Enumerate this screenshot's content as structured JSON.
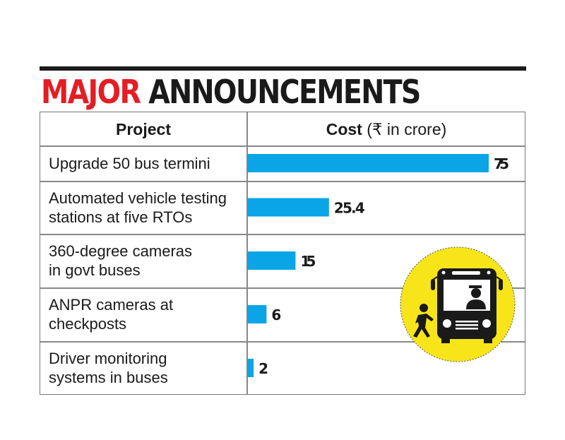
{
  "title": {
    "part1": "MAJOR",
    "part2": "ANNOUNCEMENTS"
  },
  "headers": {
    "project": "Project",
    "cost_bold": "Cost",
    "cost_unit": "(₹ in crore)"
  },
  "colors": {
    "bar": "#0aa5e6",
    "title_red": "#e31e24",
    "icon_circle": "#f7e51a"
  },
  "icon": "bus-with-driver-and-passenger-icon",
  "chart_data": {
    "type": "bar",
    "orientation": "horizontal",
    "categories": [
      "Upgrade 50 bus termini",
      "Automated vehicle testing stations at five RTOs",
      "360-degree cameras in govt buses",
      "ANPR cameras at checkposts",
      "Driver monitoring systems in buses"
    ],
    "category_lines": [
      [
        "Upgrade 50 bus termini"
      ],
      [
        "Automated vehicle testing",
        "stations at five RTOs"
      ],
      [
        "360-degree cameras",
        "in govt buses"
      ],
      [
        "ANPR cameras at",
        "checkposts"
      ],
      [
        "Driver monitoring",
        "systems in buses"
      ]
    ],
    "values": [
      75,
      25.4,
      15,
      6,
      2
    ],
    "value_labels": [
      "75",
      "25.4",
      "15",
      "6",
      "2"
    ],
    "xlim": [
      0,
      75
    ],
    "grid": false
  }
}
